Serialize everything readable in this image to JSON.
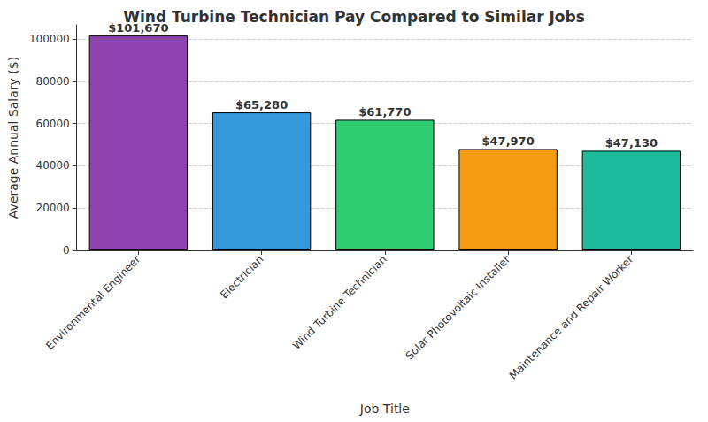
{
  "chart_data": {
    "type": "bar",
    "title": "Wind Turbine Technician Pay Compared to Similar Jobs",
    "x_label": "Job Title",
    "y_label": "Average Annual Salary ($)",
    "categories": [
      "Environmental Engineer",
      "Electrician",
      "Wind Turbine Technician",
      "Solar Photovoltaic Installer",
      "Maintenance and Repair Worker"
    ],
    "values": [
      101670,
      65280,
      61770,
      47970,
      47130
    ],
    "value_labels": [
      "$101,670",
      "$65,280",
      "$61,770",
      "$47,970",
      "$47,130"
    ],
    "colors": [
      "#8e44ad",
      "#3498db",
      "#2ecc71",
      "#f39c12",
      "#1abc9c"
    ],
    "ylim": [
      0,
      106750
    ],
    "yticks": [
      0,
      20000,
      40000,
      60000,
      80000,
      100000
    ],
    "grid": true,
    "data_labels": true
  }
}
